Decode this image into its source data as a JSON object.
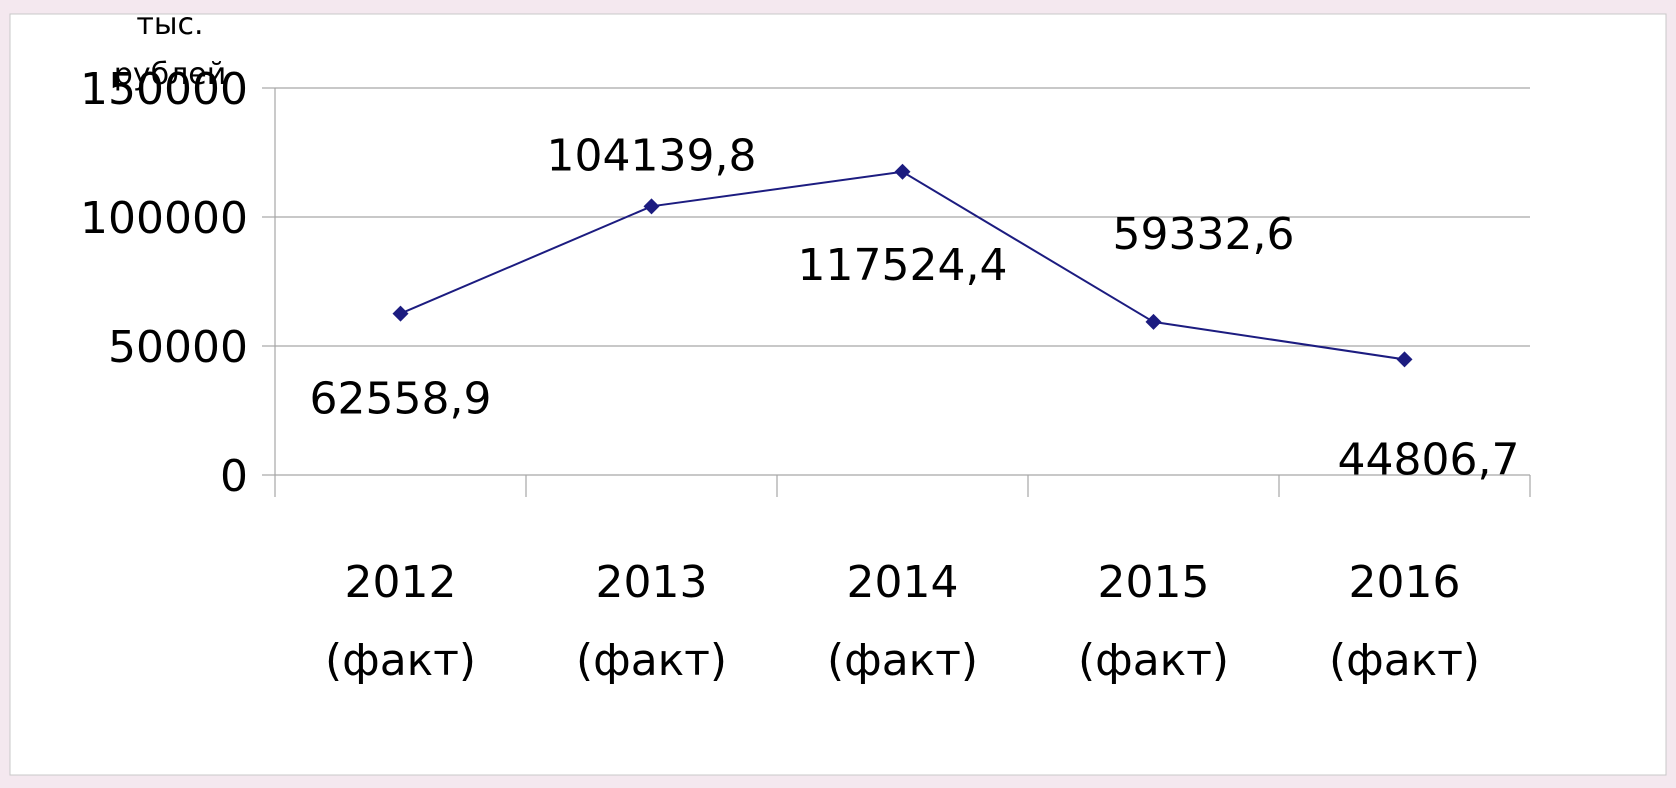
{
  "chart_data": {
    "type": "line",
    "y_label": "тыс. рублей",
    "categories": [
      "2012 (факт)",
      "2013 (факт)",
      "2014 (факт)",
      "2015 (факт)",
      "2016 (факт)"
    ],
    "series": [
      {
        "name": "тыс. рублей",
        "color": "#1c1c80",
        "values": [
          62558.9,
          104139.8,
          117524.4,
          59332.6,
          44806.7
        ],
        "value_labels": [
          "62558,9",
          "104139,8",
          "117524,4",
          "59332,6",
          "44806,7"
        ]
      }
    ],
    "ylim": [
      0,
      150000
    ],
    "yticks": [
      0,
      50000,
      100000,
      150000
    ],
    "grid": true
  }
}
